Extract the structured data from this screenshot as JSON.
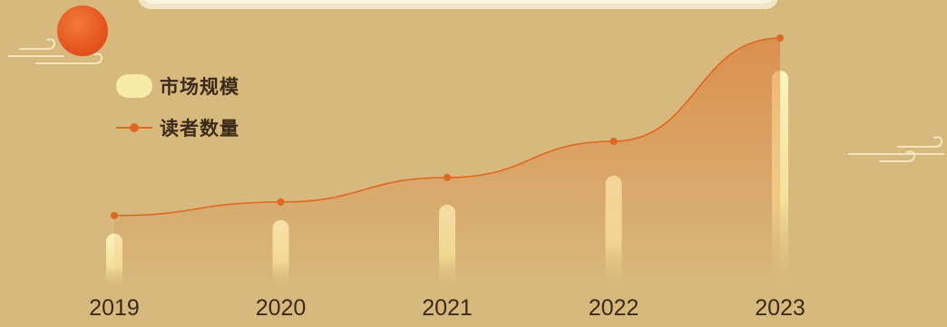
{
  "chart_data": {
    "type": "bar",
    "categories": [
      "2019",
      "2020",
      "2021",
      "2022",
      "2023"
    ],
    "series": [
      {
        "name": "市场规模",
        "type": "bar",
        "values": [
          60,
          75,
          92,
          124,
          240
        ]
      },
      {
        "name": "读者数量",
        "type": "line",
        "values": [
          80,
          95,
          122,
          162,
          276
        ]
      }
    ],
    "ylim": [
      0,
      300
    ],
    "legend_position": "top-left",
    "grid": false,
    "colors": {
      "bar": "#f6eba8",
      "line": "#e0671f",
      "background": "#d7b97e",
      "sun": "#e8531e"
    }
  }
}
